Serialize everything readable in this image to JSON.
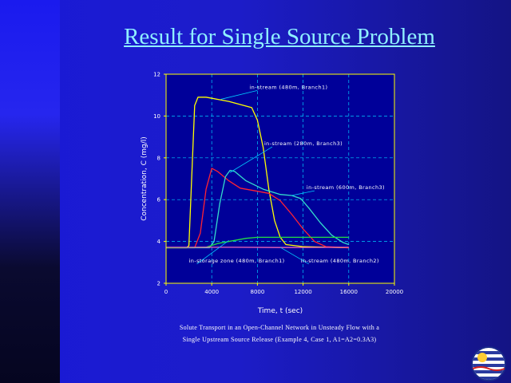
{
  "slide": {
    "title": "Result for Single Source Problem",
    "caption_line1": "Solute Transport in an Open-Channel Network in Unsteady Flow with a",
    "caption_line2": "Single Upstream Source Release (Example 4, Case 1, A1=A2=0.3A3)"
  },
  "colors": {
    "background": "#1c1cc8",
    "title": "#8ff0ff",
    "axes": "#ffff00",
    "grid": "#00ccff",
    "plot_background": "#000099"
  },
  "chart_data": {
    "type": "line",
    "title": "",
    "xlabel": "Time, t (sec)",
    "ylabel": "Concentration, C (mg/l)",
    "xlim": [
      0,
      20000
    ],
    "ylim": [
      2,
      12
    ],
    "xticks": [
      0,
      4000,
      8000,
      12000,
      16000,
      20000
    ],
    "yticks": [
      2,
      4,
      6,
      8,
      10,
      12
    ],
    "grid": true,
    "legend": "none",
    "series": [
      {
        "name": "",
        "color": "#ffff00",
        "points": [
          [
            0,
            3.7
          ],
          [
            1800,
            3.7
          ],
          [
            2000,
            3.8
          ],
          [
            2200,
            6.5
          ],
          [
            2500,
            10.5
          ],
          [
            2800,
            10.9
          ],
          [
            3500,
            10.9
          ],
          [
            5500,
            10.7
          ],
          [
            7500,
            10.4
          ],
          [
            8000,
            9.8
          ],
          [
            8500,
            8.5
          ],
          [
            9000,
            6.5
          ],
          [
            9500,
            5.0
          ],
          [
            10000,
            4.2
          ],
          [
            10500,
            3.85
          ],
          [
            12000,
            3.75
          ],
          [
            16000,
            3.7
          ]
        ]
      },
      {
        "name": "",
        "color": "#ff2233",
        "points": [
          [
            0,
            3.7
          ],
          [
            2500,
            3.7
          ],
          [
            3000,
            4.4
          ],
          [
            3500,
            6.5
          ],
          [
            4000,
            7.5
          ],
          [
            4500,
            7.35
          ],
          [
            5500,
            6.9
          ],
          [
            6500,
            6.55
          ],
          [
            8000,
            6.4
          ],
          [
            9000,
            6.3
          ],
          [
            10000,
            5.95
          ],
          [
            11000,
            5.3
          ],
          [
            12000,
            4.6
          ],
          [
            13000,
            4.0
          ],
          [
            14000,
            3.75
          ],
          [
            16000,
            3.7
          ]
        ]
      },
      {
        "name": "",
        "color": "#33ddcc",
        "points": [
          [
            0,
            3.7
          ],
          [
            3800,
            3.7
          ],
          [
            4200,
            4.0
          ],
          [
            4700,
            5.8
          ],
          [
            5200,
            7.1
          ],
          [
            5600,
            7.4
          ],
          [
            6000,
            7.35
          ],
          [
            7000,
            6.9
          ],
          [
            8500,
            6.5
          ],
          [
            10000,
            6.25
          ],
          [
            11000,
            6.2
          ],
          [
            11800,
            6.05
          ],
          [
            12500,
            5.6
          ],
          [
            13500,
            4.9
          ],
          [
            14500,
            4.3
          ],
          [
            15500,
            3.95
          ],
          [
            16000,
            3.85
          ]
        ]
      },
      {
        "name": "",
        "color": "#22dd44",
        "points": [
          [
            0,
            3.7
          ],
          [
            3500,
            3.72
          ],
          [
            4500,
            3.9
          ],
          [
            6000,
            4.05
          ],
          [
            7000,
            4.15
          ],
          [
            8000,
            4.2
          ],
          [
            12000,
            4.2
          ],
          [
            16000,
            4.2
          ]
        ]
      },
      {
        "name": "",
        "color": "#ee66bb",
        "points": [
          [
            0,
            3.72
          ],
          [
            6000,
            3.72
          ],
          [
            10000,
            3.71
          ],
          [
            16000,
            3.72
          ]
        ]
      }
    ],
    "annotations": [
      {
        "text": "in-stream (480m, Branch1)",
        "at": [
          7300,
          11.3
        ],
        "pointer": [
          4800,
          10.8
        ]
      },
      {
        "text": "in-stream (280m, Branch3)",
        "at": [
          8600,
          8.6
        ],
        "pointer": [
          5600,
          7.3
        ]
      },
      {
        "text": "in-stream (600m, Branch3)",
        "at": [
          12300,
          6.5
        ],
        "pointer": [
          11000,
          6.2
        ]
      },
      {
        "text": "in-storage zone (480m, Branch1)",
        "at": [
          2000,
          3.0
        ],
        "pointer": [
          5500,
          4.05
        ]
      },
      {
        "text": "in-stream (480m, Branch2)",
        "at": [
          11800,
          3.0
        ],
        "pointer": [
          10000,
          3.72
        ]
      }
    ]
  }
}
